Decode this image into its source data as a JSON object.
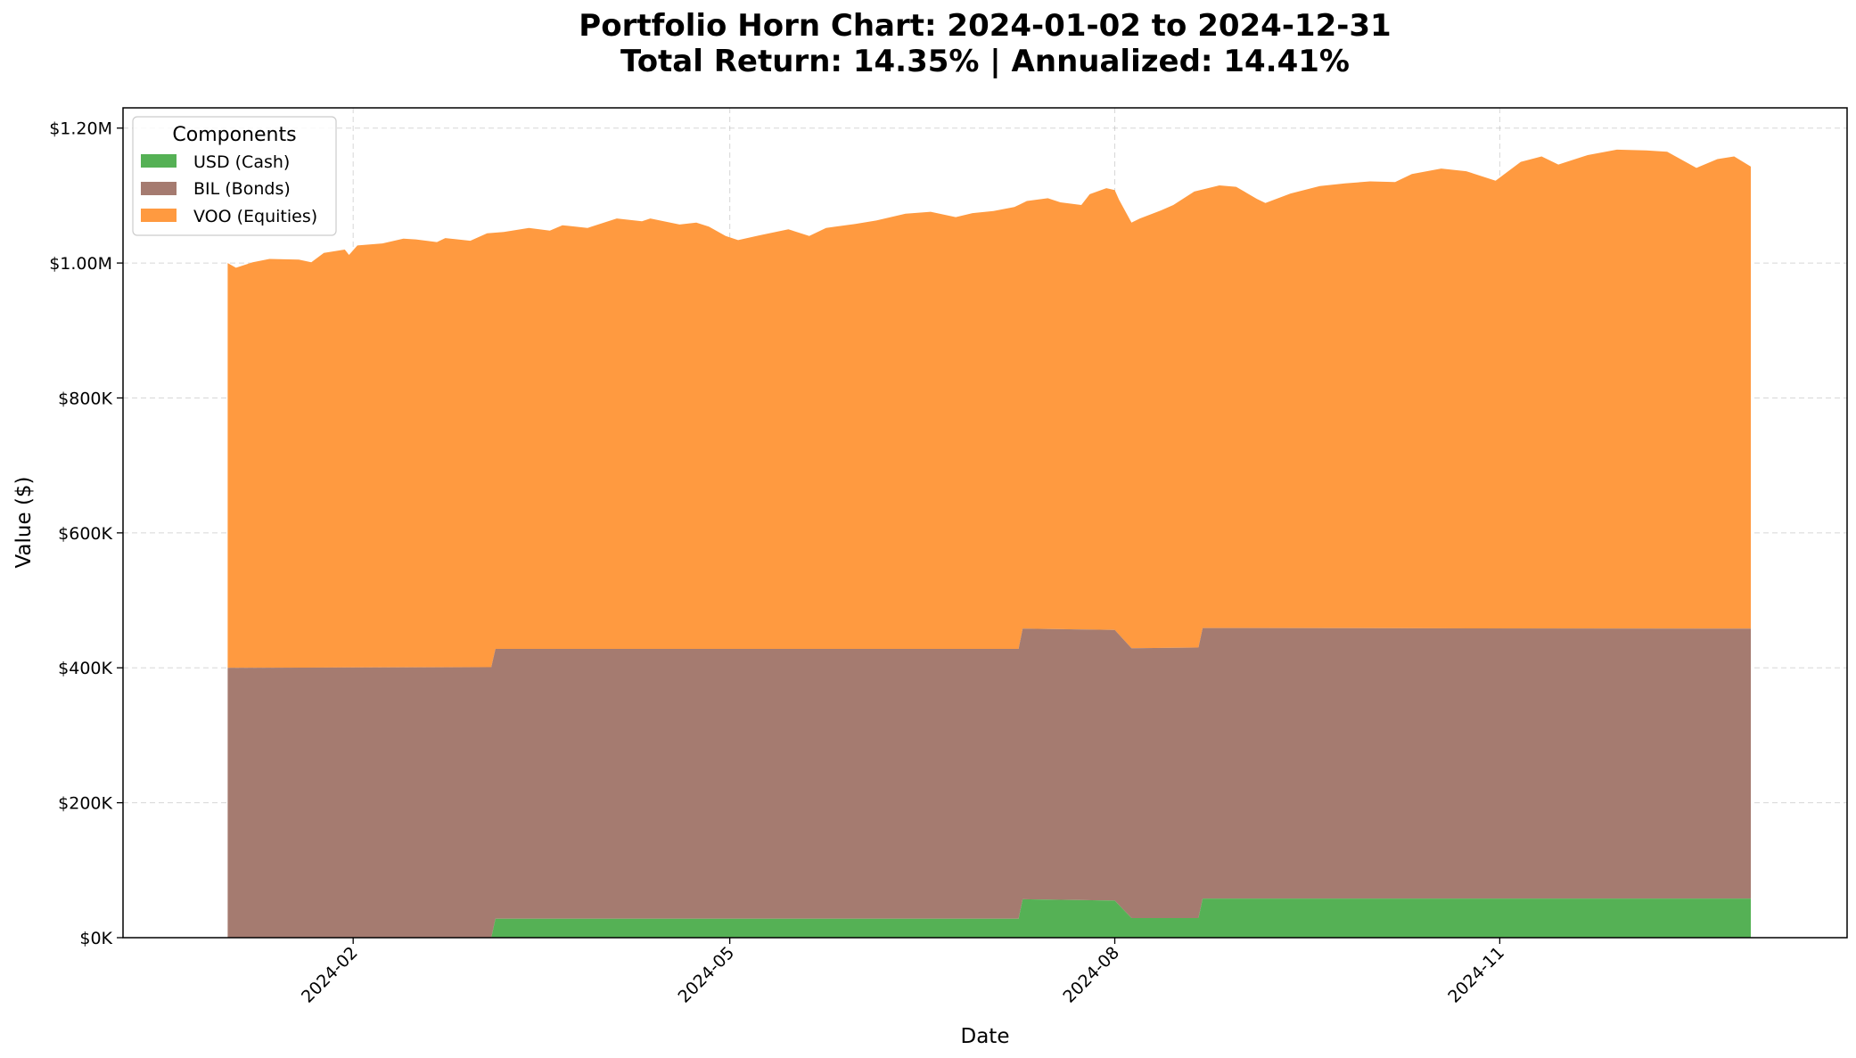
{
  "chart_data": {
    "type": "area",
    "stacked": true,
    "title_line1": "Portfolio Horn Chart: 2024-01-02 to 2024-12-31",
    "title_line2": "Total Return: 14.35% | Annualized: 14.41%",
    "xlabel": "Date",
    "ylabel": "Value ($)",
    "x_start": "2024-01-02",
    "x_end": "2024-12-31",
    "xlim": [
      "2023-12-08",
      "2025-01-23"
    ],
    "ylim": [
      0,
      1230000
    ],
    "x_ticks": [
      {
        "date": "2024-02-01",
        "label": "2024-02"
      },
      {
        "date": "2024-05-01",
        "label": "2024-05"
      },
      {
        "date": "2024-08-01",
        "label": "2024-08"
      },
      {
        "date": "2024-11-01",
        "label": "2024-11"
      }
    ],
    "y_ticks": [
      {
        "value": 0,
        "label": "$0K"
      },
      {
        "value": 200000,
        "label": "$200K"
      },
      {
        "value": 400000,
        "label": "$400K"
      },
      {
        "value": 600000,
        "label": "$600K"
      },
      {
        "value": 800000,
        "label": "$800K"
      },
      {
        "value": 1000000,
        "label": "$1.00M"
      },
      {
        "value": 1200000,
        "label": "$1.20M"
      }
    ],
    "grid": true,
    "legend": {
      "title": "Components",
      "position": "top-left"
    },
    "series": [
      {
        "name": "USD (Cash)",
        "color": "#55b155",
        "points": [
          [
            "2024-01-02",
            0
          ],
          [
            "2024-03-05",
            0
          ],
          [
            "2024-03-06",
            28000
          ],
          [
            "2024-07-09",
            28000
          ],
          [
            "2024-07-10",
            57000
          ],
          [
            "2024-08-01",
            55000
          ],
          [
            "2024-08-05",
            29000
          ],
          [
            "2024-08-21",
            29000
          ],
          [
            "2024-08-22",
            58000
          ],
          [
            "2024-12-31",
            58000
          ]
        ]
      },
      {
        "name": "BIL (Bonds)",
        "color": "#a57b70",
        "points": [
          [
            "2024-01-02",
            400000
          ],
          [
            "2024-03-05",
            401000
          ],
          [
            "2024-03-06",
            400000
          ],
          [
            "2024-07-09",
            400000
          ],
          [
            "2024-07-10",
            401000
          ],
          [
            "2024-08-01",
            401000
          ],
          [
            "2024-08-05",
            400000
          ],
          [
            "2024-08-21",
            401000
          ],
          [
            "2024-08-22",
            401000
          ],
          [
            "2024-12-31",
            400000
          ]
        ]
      },
      {
        "name": "VOO (Equities)",
        "color": "#ff9a40",
        "total_points": [
          [
            "2024-01-02",
            1000000
          ],
          [
            "2024-01-04",
            993000
          ],
          [
            "2024-01-08",
            1001000
          ],
          [
            "2024-01-12",
            1006000
          ],
          [
            "2024-01-19",
            1005000
          ],
          [
            "2024-01-22",
            1001000
          ],
          [
            "2024-01-25",
            1015000
          ],
          [
            "2024-01-30",
            1020000
          ],
          [
            "2024-01-31",
            1012000
          ],
          [
            "2024-02-02",
            1026000
          ],
          [
            "2024-02-08",
            1029000
          ],
          [
            "2024-02-13",
            1036000
          ],
          [
            "2024-02-16",
            1035000
          ],
          [
            "2024-02-21",
            1031000
          ],
          [
            "2024-02-23",
            1037000
          ],
          [
            "2024-02-29",
            1033000
          ],
          [
            "2024-03-04",
            1044000
          ],
          [
            "2024-03-08",
            1046000
          ],
          [
            "2024-03-14",
            1052000
          ],
          [
            "2024-03-19",
            1048000
          ],
          [
            "2024-03-22",
            1056000
          ],
          [
            "2024-03-28",
            1052000
          ],
          [
            "2024-04-04",
            1066000
          ],
          [
            "2024-04-10",
            1062000
          ],
          [
            "2024-04-12",
            1066000
          ],
          [
            "2024-04-19",
            1057000
          ],
          [
            "2024-04-23",
            1060000
          ],
          [
            "2024-04-26",
            1054000
          ],
          [
            "2024-04-30",
            1040000
          ],
          [
            "2024-05-03",
            1034000
          ],
          [
            "2024-05-08",
            1041000
          ],
          [
            "2024-05-15",
            1050000
          ],
          [
            "2024-05-20",
            1040000
          ],
          [
            "2024-05-24",
            1052000
          ],
          [
            "2024-05-31",
            1058000
          ],
          [
            "2024-06-05",
            1063000
          ],
          [
            "2024-06-12",
            1073000
          ],
          [
            "2024-06-18",
            1076000
          ],
          [
            "2024-06-24",
            1068000
          ],
          [
            "2024-06-28",
            1074000
          ],
          [
            "2024-07-03",
            1077000
          ],
          [
            "2024-07-08",
            1083000
          ],
          [
            "2024-07-11",
            1092000
          ],
          [
            "2024-07-16",
            1096000
          ],
          [
            "2024-07-19",
            1090000
          ],
          [
            "2024-07-24",
            1086000
          ],
          [
            "2024-07-26",
            1102000
          ],
          [
            "2024-07-30",
            1111000
          ],
          [
            "2024-08-01",
            1108000
          ],
          [
            "2024-08-02",
            1094000
          ],
          [
            "2024-08-05",
            1060000
          ],
          [
            "2024-08-07",
            1066000
          ],
          [
            "2024-08-12",
            1078000
          ],
          [
            "2024-08-15",
            1086000
          ],
          [
            "2024-08-20",
            1106000
          ],
          [
            "2024-08-26",
            1115000
          ],
          [
            "2024-08-30",
            1113000
          ],
          [
            "2024-09-04",
            1095000
          ],
          [
            "2024-09-06",
            1089000
          ],
          [
            "2024-09-12",
            1103000
          ],
          [
            "2024-09-19",
            1114000
          ],
          [
            "2024-09-25",
            1118000
          ],
          [
            "2024-10-01",
            1121000
          ],
          [
            "2024-10-07",
            1120000
          ],
          [
            "2024-10-11",
            1132000
          ],
          [
            "2024-10-18",
            1140000
          ],
          [
            "2024-10-24",
            1136000
          ],
          [
            "2024-10-31",
            1122000
          ],
          [
            "2024-11-06",
            1150000
          ],
          [
            "2024-11-11",
            1158000
          ],
          [
            "2024-11-15",
            1146000
          ],
          [
            "2024-11-22",
            1160000
          ],
          [
            "2024-11-29",
            1168000
          ],
          [
            "2024-12-06",
            1167000
          ],
          [
            "2024-12-11",
            1165000
          ],
          [
            "2024-12-18",
            1141000
          ],
          [
            "2024-12-23",
            1154000
          ],
          [
            "2024-12-27",
            1158000
          ],
          [
            "2024-12-31",
            1143000
          ]
        ]
      }
    ]
  }
}
